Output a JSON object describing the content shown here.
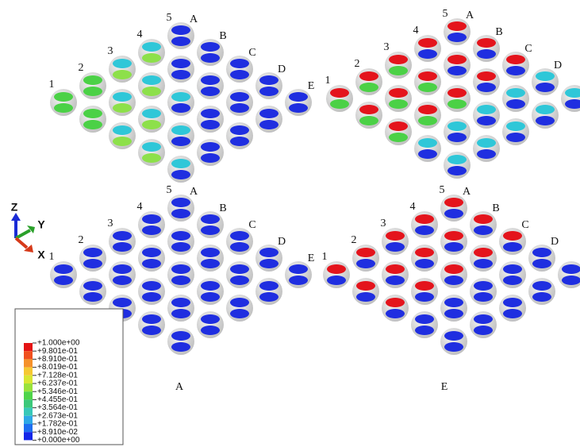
{
  "panels": [
    {
      "row_labels": [
        "1",
        "2",
        "3",
        "4",
        "5"
      ],
      "col_labels": [
        "A",
        "B",
        "C",
        "D",
        "E"
      ]
    },
    {
      "row_labels": [
        "1",
        "2",
        "3",
        "4",
        "5"
      ],
      "col_labels": [
        "A",
        "B",
        "C",
        "D"
      ]
    },
    {
      "row_labels": [
        "1",
        "2",
        "3",
        "4",
        "5"
      ],
      "col_labels": [
        "A",
        "B",
        "C",
        "D",
        "E"
      ]
    },
    {
      "row_labels": [
        "1",
        "2",
        "3",
        "4",
        "5"
      ],
      "col_labels": [
        "A",
        "B",
        "C",
        "D"
      ]
    }
  ],
  "captions": [
    "A",
    "E"
  ],
  "triad": {
    "z": "Z",
    "y": "Y",
    "x": "X"
  },
  "legend": {
    "labels": [
      "+1.000e+00",
      "+9.801e-01",
      "+8.910e-01",
      "+8.019e-01",
      "+7.128e-01",
      "+6.237e-01",
      "+5.346e-01",
      "+4.455e-01",
      "+3.564e-01",
      "+2.673e-01",
      "+1.782e-01",
      "+8.910e-02",
      "+0.000e+00"
    ]
  }
}
